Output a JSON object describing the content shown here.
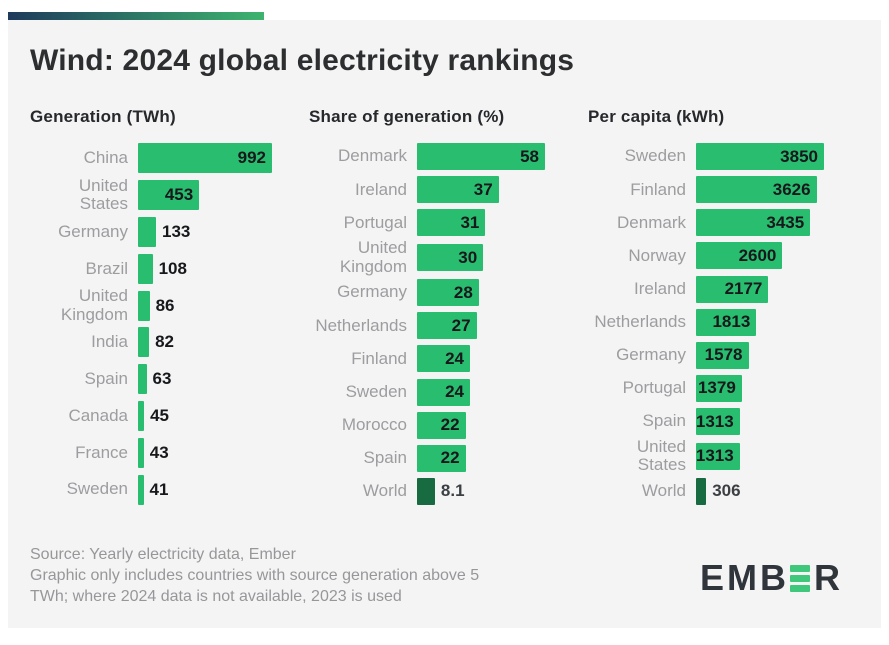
{
  "title": "Wind: 2024 global electricity rankings",
  "colors": {
    "gradient_start": "#1e3a5c",
    "gradient_end": "#3db46f",
    "card_bg": "#f4f4f5",
    "bar_green": "#29bd6f",
    "bar_dark_green": "#186a40",
    "label_gray": "#9d9da0",
    "value_dark": "#17181b",
    "logo_dark": "#2f353b",
    "logo_green": "#3fc87c"
  },
  "chart_data": [
    {
      "type": "bar",
      "orientation": "horizontal",
      "title": "Generation (TWh)",
      "unit": "TWh",
      "max": 992,
      "categories": [
        "China",
        "United States",
        "Germany",
        "Brazil",
        "United Kingdom",
        "India",
        "Spain",
        "Canada",
        "France",
        "Sweden"
      ],
      "values": [
        992,
        453,
        133,
        108,
        86,
        82,
        63,
        45,
        43,
        41
      ]
    },
    {
      "type": "bar",
      "orientation": "horizontal",
      "title": "Share of generation (%)",
      "unit": "%",
      "max": 58,
      "categories": [
        "Denmark",
        "Ireland",
        "Portugal",
        "United Kingdom",
        "Germany",
        "Netherlands",
        "Finland",
        "Sweden",
        "Morocco",
        "Spain",
        "World"
      ],
      "values": [
        58,
        37,
        31,
        30,
        28,
        27,
        24,
        24,
        22,
        22,
        8.1
      ]
    },
    {
      "type": "bar",
      "orientation": "horizontal",
      "title": "Per capita (kWh)",
      "unit": "kWh",
      "max": 3850,
      "categories": [
        "Sweden",
        "Finland",
        "Denmark",
        "Norway",
        "Ireland",
        "Netherlands",
        "Germany",
        "Portugal",
        "Spain",
        "United States",
        "World"
      ],
      "values": [
        3850,
        3626,
        3435,
        2600,
        2177,
        1813,
        1578,
        1379,
        1313,
        1313,
        306
      ]
    }
  ],
  "footer": {
    "source_lines": [
      "Source: Yearly electricity data, Ember",
      "Graphic only includes countries with source generation above 5",
      "TWh; where 2024 data is not available, 2023 is used"
    ],
    "logo": {
      "full": "EMBER",
      "prefix": "EMB",
      "suffix": "R"
    }
  }
}
